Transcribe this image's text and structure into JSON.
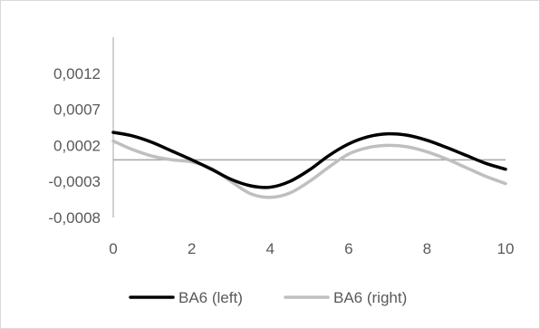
{
  "chart_data": {
    "type": "line",
    "title": "",
    "xlabel": "",
    "ylabel": "",
    "xlim": [
      0,
      10
    ],
    "ylim": [
      -0.0008,
      0.0017
    ],
    "x_ticks": [
      0,
      2,
      4,
      6,
      8,
      10
    ],
    "x_tick_labels": [
      "0",
      "2",
      "4",
      "6",
      "8",
      "10"
    ],
    "y_ticks": [
      -0.0008,
      -0.0003,
      0.0002,
      0.0007,
      0.0012
    ],
    "y_tick_labels": [
      "-0,0008",
      "-0,0003",
      "0,0002",
      "0,0007",
      "0,0012"
    ],
    "axis_line_at_y": 0,
    "grid": false,
    "legend_position": "bottom",
    "series": [
      {
        "name": "BA6 (left)",
        "color": "#000000",
        "x": [
          0,
          0.5,
          1,
          1.5,
          2,
          2.5,
          3,
          3.5,
          4,
          4.5,
          5,
          5.5,
          6,
          6.5,
          7,
          7.5,
          8,
          8.5,
          9,
          9.5,
          10
        ],
        "y": [
          0.00038,
          0.00033,
          0.00024,
          0.00012,
          0.0,
          -0.00013,
          -0.00027,
          -0.00036,
          -0.00038,
          -0.0003,
          -0.00014,
          6e-05,
          0.00022,
          0.00032,
          0.00036,
          0.00034,
          0.00027,
          0.00017,
          6e-05,
          -5e-05,
          -0.00013
        ]
      },
      {
        "name": "BA6 (right)",
        "color": "#bfbfbf",
        "x": [
          0,
          0.5,
          1,
          1.5,
          2,
          2.5,
          3,
          3.5,
          4,
          4.5,
          5,
          5.5,
          6,
          6.5,
          7,
          7.5,
          8,
          8.5,
          9,
          9.5,
          10
        ],
        "y": [
          0.00026,
          0.00014,
          5e-05,
          0.0,
          -3e-05,
          -0.00012,
          -0.0003,
          -0.00047,
          -0.00052,
          -0.00046,
          -0.0003,
          -0.0001,
          8e-05,
          0.00017,
          0.0002,
          0.00018,
          0.00011,
          1e-05,
          -0.00011,
          -0.00023,
          -0.00033
        ]
      }
    ]
  }
}
